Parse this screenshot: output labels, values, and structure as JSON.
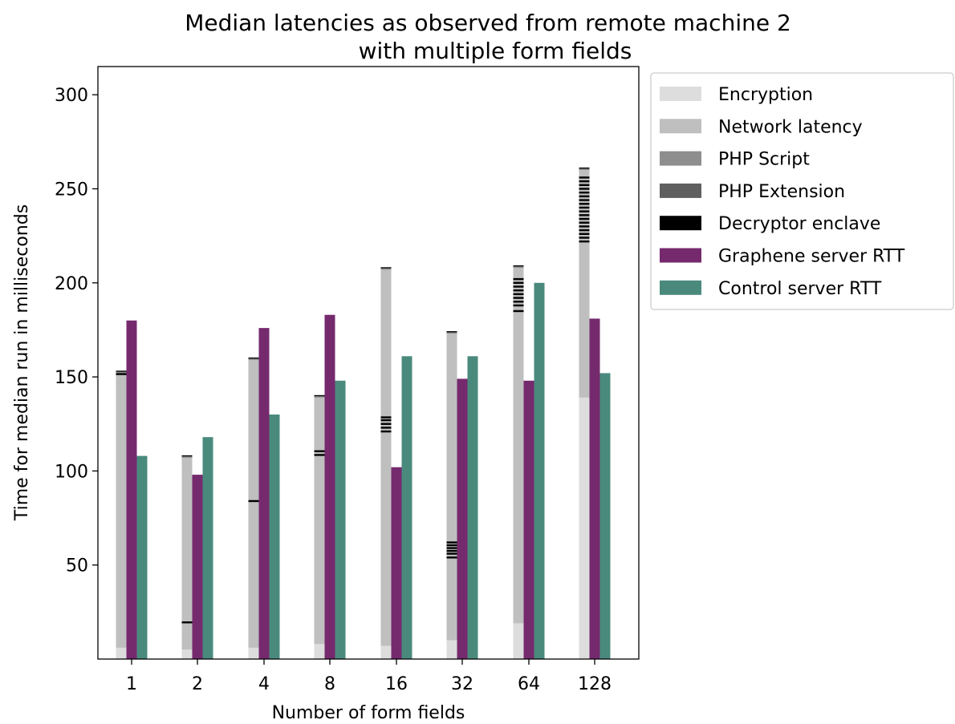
{
  "chart_data": {
    "type": "bar",
    "title_lines": [
      "Median latencies as observed from remote machine 2",
      "with multiple form fields"
    ],
    "xlabel": "Number of form fields",
    "ylabel": "Time for median run in milliseconds",
    "categories": [
      "1",
      "2",
      "4",
      "8",
      "16",
      "32",
      "64",
      "128"
    ],
    "ylim": [
      0,
      315
    ],
    "yticks": [
      50,
      100,
      150,
      200,
      250,
      300
    ],
    "grid": false,
    "legend_position": "outside-right-top",
    "legend": [
      {
        "label": "Encryption",
        "color": "#dddddd"
      },
      {
        "label": "Network latency",
        "color": "#bfbfbf"
      },
      {
        "label": "PHP Script",
        "color": "#8e8e8e"
      },
      {
        "label": "PHP Extension",
        "color": "#5f5f5f"
      },
      {
        "label": "Decryptor enclave",
        "color": "#000000"
      },
      {
        "label": "Graphene server RTT",
        "color": "#762a6e"
      },
      {
        "label": "Control server RTT",
        "color": "#4a8a7d"
      }
    ],
    "stacked_series": [
      {
        "name": "Encryption",
        "color": "#dddddd",
        "values": [
          6,
          5,
          6,
          8,
          7,
          10,
          19,
          139
        ]
      },
      {
        "name": "Network latency",
        "color": "#bfbfbf",
        "values": [
          146,
          102,
          153,
          131,
          200,
          163,
          189,
          121
        ]
      },
      {
        "name": "PHP Script",
        "color": "#8e8e8e",
        "values": [
          0.5,
          0.5,
          0.5,
          0.5,
          0.5,
          0.5,
          0.5,
          0.5
        ]
      },
      {
        "name": "PHP Extension",
        "color": "#5f5f5f",
        "values": [
          0.3,
          0.3,
          0.3,
          0.3,
          0.3,
          0.3,
          0.3,
          0.3
        ]
      },
      {
        "name": "Decryptor enclave",
        "color": "#000000",
        "values": [
          0.3,
          0.3,
          0.3,
          0.3,
          0.3,
          0.3,
          0.3,
          0.3
        ]
      }
    ],
    "enclave_marks": [
      [
        151.5
      ],
      [
        19.5
      ],
      [
        84
      ],
      [
        108.5,
        110.5
      ],
      [
        121,
        123,
        125,
        127,
        128.5
      ],
      [
        54,
        56,
        57.5,
        59,
        60.5,
        62
      ],
      [
        185,
        188,
        190,
        192,
        194,
        196,
        198,
        200,
        202
      ],
      [
        222,
        224,
        226,
        228,
        230,
        232,
        234,
        236,
        238,
        240,
        242,
        244,
        246,
        248,
        250,
        252,
        254,
        256
      ]
    ],
    "series": [
      {
        "name": "Graphene server RTT",
        "color": "#762a6e",
        "values": [
          180,
          98,
          176,
          183,
          102,
          149,
          148,
          181
        ]
      },
      {
        "name": "Control server RTT",
        "color": "#4a8a7d",
        "values": [
          108,
          118,
          130,
          148,
          161,
          161,
          200,
          152
        ]
      }
    ]
  }
}
